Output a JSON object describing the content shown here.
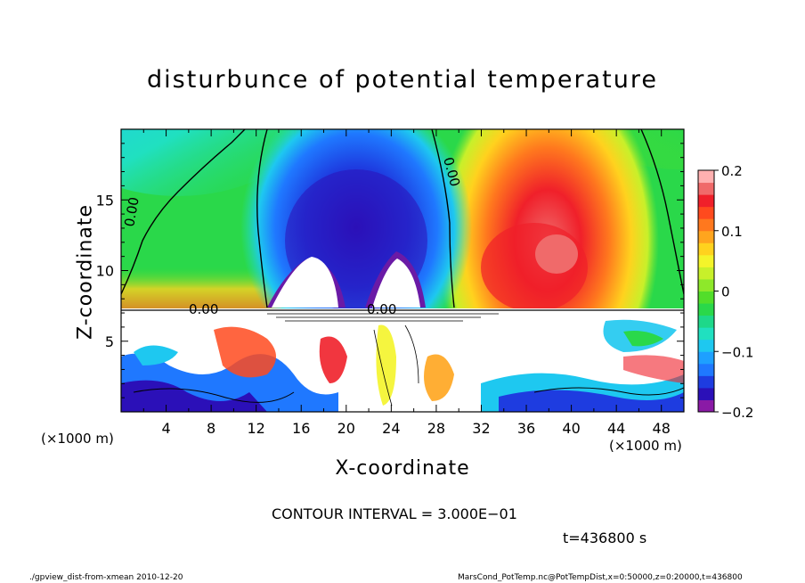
{
  "chart_data": {
    "type": "heatmap",
    "title": "disturbunce of potential temperature",
    "xlabel": "X-coordinate",
    "ylabel": "Z-coordinate",
    "x_unit": "(×1000 m)",
    "y_unit": "(×1000 m)",
    "xlim": [
      0,
      50
    ],
    "ylim": [
      0,
      20
    ],
    "x_ticks": [
      4,
      8,
      12,
      16,
      20,
      24,
      28,
      32,
      36,
      40,
      44,
      48
    ],
    "y_ticks": [
      5,
      10,
      15
    ],
    "colorbar": {
      "range": [
        -0.2,
        0.2
      ],
      "tick_values": [
        0.2,
        0.1,
        0,
        -0.1,
        -0.2
      ],
      "tick_labels": [
        "0.2",
        "0.1",
        "0",
        "−0.1",
        "−0.2"
      ],
      "colors": [
        "#8a1aa6",
        "#2b10b8",
        "#1e3ce0",
        "#1f78ff",
        "#1ea0ff",
        "#1ec8f0",
        "#20e0c0",
        "#1ed88a",
        "#2ad84a",
        "#52de2a",
        "#8ee82a",
        "#c8f02a",
        "#f4f42a",
        "#ffd21e",
        "#ffa51e",
        "#ff781e",
        "#ff4a1e",
        "#f0202a",
        "#f06a6a",
        "#ffb0b0"
      ]
    },
    "contour_labels": [
      "0.00",
      "0.00",
      "0.00",
      "0.00"
    ],
    "contour_interval": "CONTOUR INTERVAL = 3.000E−01"
  },
  "time_label": "t=436800 s",
  "footer_left": "./gpview_dist-from-xmean   2010-12-20",
  "footer_right": "MarsCond_PotTemp.nc@PotTempDist,x=0:50000,z=0:20000,t=436800"
}
